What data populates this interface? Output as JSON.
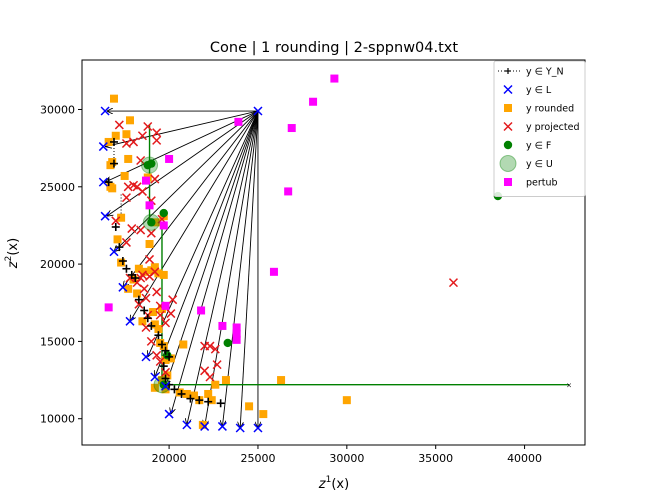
{
  "chart_data": {
    "type": "scatter",
    "title": "Cone | 1 rounding | 2-sppnw04.txt",
    "xlabel": "z^1(x)",
    "ylabel": "z^2(x)",
    "xlim": [
      15100,
      43400
    ],
    "ylim": [
      8300,
      33200
    ],
    "xticks": [
      20000,
      25000,
      30000,
      35000,
      40000
    ],
    "yticks": [
      10000,
      15000,
      20000,
      25000,
      30000
    ],
    "xtick_labels": [
      "20000",
      "25000",
      "30000",
      "35000",
      "40000"
    ],
    "ytick_labels": [
      "10000",
      "15000",
      "20000",
      "25000",
      "30000"
    ],
    "legend_position": "top-right",
    "legend": [
      {
        "key": "YN",
        "label": "y ∈ Y_N",
        "marker": "plus-dotted-line",
        "color": "#000000"
      },
      {
        "key": "L",
        "label": "y ∈ L",
        "marker": "x",
        "color": "#0000ff"
      },
      {
        "key": "rounded",
        "label": "y rounded",
        "marker": "square",
        "color": "#ffa500"
      },
      {
        "key": "projected",
        "label": "y projected",
        "marker": "x",
        "color": "#e31a1c"
      },
      {
        "key": "F",
        "label": "y ∈ F",
        "marker": "circle",
        "color": "#008000"
      },
      {
        "key": "U",
        "label": "y ∈ U",
        "marker": "circle-large-translucent",
        "color": "#008000"
      },
      {
        "key": "pertub",
        "label": "pertub",
        "marker": "square",
        "color": "#ff00ff"
      }
    ],
    "cone_apex": [
      25000,
      29900
    ],
    "cone_targets": [
      [
        16500,
        29900
      ],
      [
        16400,
        27600
      ],
      [
        16400,
        25300
      ],
      [
        16500,
        23100
      ],
      [
        16900,
        20800
      ],
      [
        17400,
        18500
      ],
      [
        17800,
        16300
      ],
      [
        18800,
        14000
      ],
      [
        19200,
        12700
      ],
      [
        19800,
        12100
      ],
      [
        20100,
        10300
      ],
      [
        21000,
        9600
      ],
      [
        22000,
        9500
      ],
      [
        23000,
        9500
      ],
      [
        24000,
        9400
      ],
      [
        25000,
        9400
      ]
    ],
    "series": [
      {
        "key": "YN",
        "points": [
          [
            16900,
            27900
          ],
          [
            16900,
            26500
          ],
          [
            16600,
            25300
          ],
          [
            17000,
            22400
          ],
          [
            17200,
            21100
          ],
          [
            17400,
            20200
          ],
          [
            17600,
            19700
          ],
          [
            17900,
            19300
          ],
          [
            18100,
            19100
          ],
          [
            18300,
            17700
          ],
          [
            18600,
            17000
          ],
          [
            18800,
            16500
          ],
          [
            19000,
            16000
          ],
          [
            19400,
            15400
          ],
          [
            19600,
            14800
          ],
          [
            19800,
            14400
          ],
          [
            20000,
            14000
          ],
          [
            19700,
            13400
          ],
          [
            19800,
            12600
          ],
          [
            20000,
            12200
          ],
          [
            20300,
            11900
          ],
          [
            20700,
            11600
          ],
          [
            21200,
            11300
          ],
          [
            21700,
            11200
          ],
          [
            22200,
            11100
          ],
          [
            22900,
            11000
          ]
        ]
      },
      {
        "key": "L",
        "points": [
          [
            16400,
            29900
          ],
          [
            16300,
            27600
          ],
          [
            16300,
            25300
          ],
          [
            16400,
            23100
          ],
          [
            16900,
            20800
          ],
          [
            17400,
            18500
          ],
          [
            17800,
            16300
          ],
          [
            18700,
            14000
          ],
          [
            19200,
            12700
          ],
          [
            19800,
            12100
          ],
          [
            20000,
            10300
          ],
          [
            21000,
            9600
          ],
          [
            22000,
            9500
          ],
          [
            23000,
            9500
          ],
          [
            24000,
            9400
          ],
          [
            25000,
            9400
          ],
          [
            25000,
            29900
          ]
        ]
      },
      {
        "key": "rounded",
        "points": [
          [
            16900,
            30700
          ],
          [
            16600,
            27900
          ],
          [
            17000,
            28300
          ],
          [
            17600,
            28400
          ],
          [
            17700,
            26800
          ],
          [
            17800,
            29300
          ],
          [
            16700,
            26400
          ],
          [
            16800,
            26600
          ],
          [
            16700,
            25000
          ],
          [
            16800,
            24900
          ],
          [
            17300,
            23000
          ],
          [
            17500,
            25700
          ],
          [
            17100,
            21600
          ],
          [
            17300,
            20100
          ],
          [
            17700,
            18400
          ],
          [
            18000,
            19000
          ],
          [
            18200,
            18100
          ],
          [
            18300,
            19700
          ],
          [
            18600,
            19500
          ],
          [
            18900,
            21300
          ],
          [
            19000,
            19600
          ],
          [
            19200,
            19800
          ],
          [
            19400,
            19400
          ],
          [
            19600,
            17100
          ],
          [
            19700,
            19300
          ],
          [
            18500,
            16300
          ],
          [
            19100,
            16900
          ],
          [
            19200,
            16100
          ],
          [
            19400,
            15800
          ],
          [
            19500,
            14900
          ],
          [
            19700,
            14700
          ],
          [
            19800,
            13800
          ],
          [
            20100,
            13900
          ],
          [
            19900,
            12800
          ],
          [
            19600,
            12500
          ],
          [
            19200,
            12000
          ],
          [
            19800,
            11900
          ],
          [
            20600,
            11700
          ],
          [
            21000,
            11600
          ],
          [
            21400,
            11500
          ],
          [
            21700,
            11200
          ],
          [
            22200,
            11600
          ],
          [
            22400,
            11200
          ],
          [
            22600,
            12200
          ],
          [
            23200,
            12500
          ],
          [
            20800,
            14800
          ],
          [
            21900,
            9600
          ],
          [
            24500,
            10800
          ],
          [
            25300,
            10300
          ],
          [
            26300,
            12500
          ],
          [
            30000,
            11200
          ],
          [
            18800,
            25600
          ],
          [
            19700,
            23100
          ],
          [
            19300,
            22700
          ]
        ]
      },
      {
        "key": "projected",
        "points": [
          [
            17200,
            29000
          ],
          [
            17600,
            27800
          ],
          [
            18000,
            27900
          ],
          [
            18500,
            28300
          ],
          [
            18800,
            28900
          ],
          [
            19300,
            28500
          ],
          [
            19300,
            28000
          ],
          [
            18400,
            26700
          ],
          [
            18000,
            25100
          ],
          [
            17600,
            24300
          ],
          [
            17700,
            25000
          ],
          [
            18200,
            25000
          ],
          [
            18500,
            24700
          ],
          [
            19000,
            24100
          ],
          [
            19200,
            25500
          ],
          [
            17000,
            22800
          ],
          [
            17600,
            21400
          ],
          [
            17900,
            22300
          ],
          [
            18400,
            22200
          ],
          [
            19000,
            22000
          ],
          [
            17800,
            19100
          ],
          [
            18200,
            18800
          ],
          [
            18400,
            19100
          ],
          [
            18500,
            19300
          ],
          [
            18600,
            18400
          ],
          [
            18700,
            17800
          ],
          [
            18900,
            19200
          ],
          [
            18900,
            20300
          ],
          [
            19200,
            19500
          ],
          [
            19300,
            18200
          ],
          [
            19500,
            17300
          ],
          [
            19500,
            16700
          ],
          [
            19800,
            16200
          ],
          [
            20100,
            16800
          ],
          [
            20200,
            17700
          ],
          [
            18300,
            17400
          ],
          [
            18800,
            16700
          ],
          [
            18700,
            15900
          ],
          [
            19000,
            15000
          ],
          [
            19300,
            14100
          ],
          [
            19500,
            13700
          ],
          [
            19800,
            13000
          ],
          [
            22000,
            14700
          ],
          [
            22300,
            14700
          ],
          [
            22600,
            14500
          ],
          [
            22000,
            13100
          ],
          [
            22300,
            12700
          ],
          [
            22700,
            13500
          ],
          [
            19600,
            22900
          ],
          [
            36000,
            18800
          ]
        ]
      },
      {
        "key": "F",
        "points": [
          [
            19700,
            23300
          ],
          [
            19000,
            22700
          ],
          [
            18800,
            26400
          ],
          [
            19000,
            26500
          ],
          [
            23300,
            14900
          ],
          [
            38500,
            24400
          ],
          [
            19700,
            12200
          ],
          [
            19900,
            14100
          ]
        ]
      },
      {
        "key": "U",
        "points": [
          [
            18900,
            26400
          ],
          [
            19000,
            22700
          ],
          [
            19600,
            12200
          ]
        ]
      },
      {
        "key": "pertub",
        "points": [
          [
            16600,
            17200
          ],
          [
            18700,
            25400
          ],
          [
            18900,
            23800
          ],
          [
            19700,
            22500
          ],
          [
            19800,
            17300
          ],
          [
            20000,
            26800
          ],
          [
            21800,
            17000
          ],
          [
            23000,
            16000
          ],
          [
            23800,
            15900
          ],
          [
            23800,
            15500
          ],
          [
            23800,
            15100
          ],
          [
            23900,
            29200
          ],
          [
            25900,
            19500
          ],
          [
            26700,
            24700
          ],
          [
            26900,
            28800
          ],
          [
            28100,
            30500
          ],
          [
            29300,
            32000
          ]
        ]
      }
    ],
    "green_lines": [
      [
        [
          18900,
          29000
        ],
        [
          18900,
          22700
        ],
        [
          19600,
          22700
        ],
        [
          19600,
          12200
        ],
        [
          42500,
          12200
        ]
      ]
    ],
    "dotted_lines": [
      [
        [
          16900,
          27900
        ],
        [
          16900,
          26500
        ]
      ],
      [
        [
          17300,
          24500
        ],
        [
          17300,
          23000
        ]
      ]
    ]
  }
}
